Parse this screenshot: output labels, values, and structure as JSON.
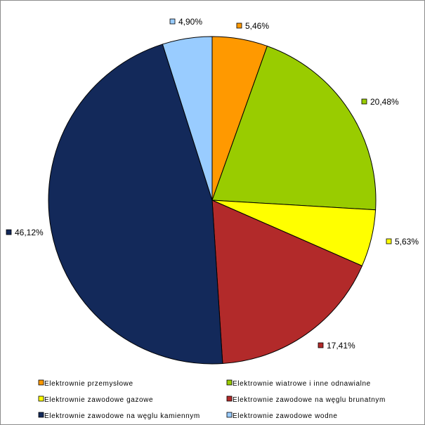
{
  "chart_data": {
    "type": "pie",
    "title": "",
    "categories": [
      "Elektrownie przemysłowe",
      "Elektrownie wiatrowe i inne odnawialne",
      "Elektrownie zawodowe gazowe",
      "Elektrownie zawodowe na węglu brunatnym",
      "Elektrownie zawodowe na węglu kamiennym",
      "Elektrownie zawodowe wodne"
    ],
    "values": [
      5.46,
      20.48,
      5.63,
      17.41,
      46.12,
      4.9
    ],
    "value_labels": [
      "5,46%",
      "20,48%",
      "5,63%",
      "17,41%",
      "46,12%",
      "4,90%"
    ],
    "colors": [
      "#ff9900",
      "#99cc00",
      "#ffff00",
      "#b22a2a",
      "#13295a",
      "#99ccff"
    ],
    "start": "12 o'clock",
    "direction": "clockwise",
    "legend_position": "bottom",
    "legend_columns": 2
  }
}
